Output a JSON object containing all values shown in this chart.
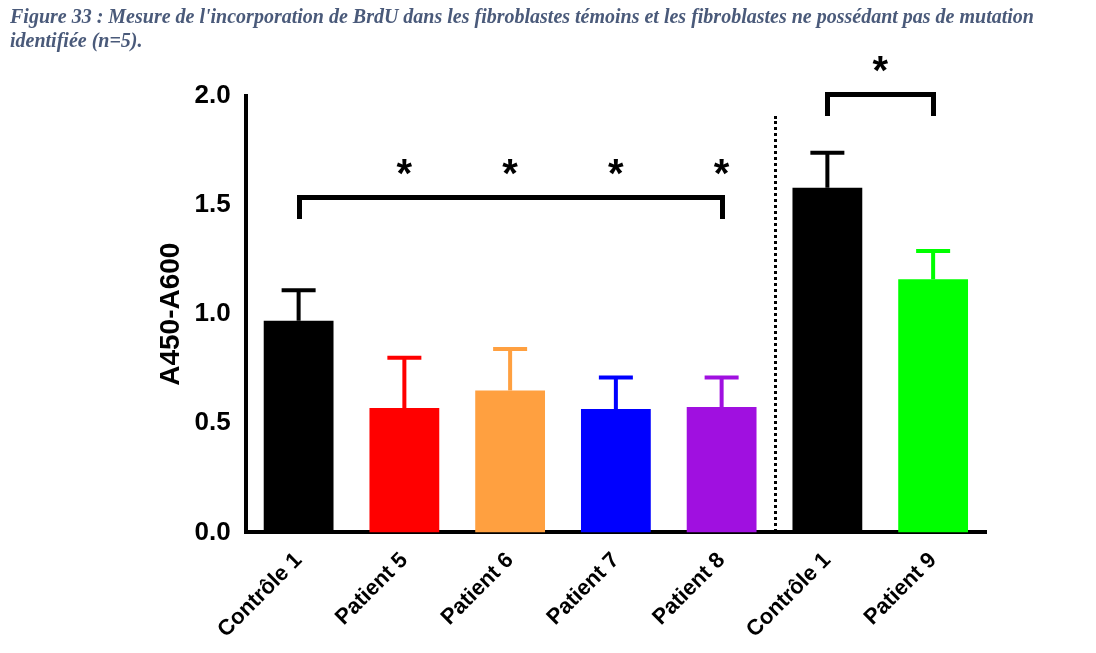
{
  "chart_data": {
    "type": "bar",
    "categories": [
      "Contrôle 1",
      "Patient 5",
      "Patient 6",
      "Patient 7",
      "Patient 8",
      "Contrôle 1",
      "Patient 9"
    ],
    "values": [
      0.97,
      0.57,
      0.65,
      0.565,
      0.575,
      1.58,
      1.16
    ],
    "colors": [
      "#000000",
      "#ff0000",
      "#ffa040",
      "#0000ff",
      "#a010e0",
      "#000000",
      "#00ff00"
    ],
    "errors": [
      [
        0.97,
        1.11
      ],
      [
        0.57,
        0.8
      ],
      [
        0.65,
        0.84
      ],
      [
        0.565,
        0.71
      ],
      [
        0.575,
        0.71
      ],
      [
        1.58,
        1.74
      ],
      [
        1.16,
        1.29
      ]
    ],
    "ylabel": "A450-A600",
    "ylim": [
      0,
      2
    ],
    "yticks": [
      {
        "value": 0,
        "label": "0.0"
      },
      {
        "value": 0.5,
        "label": "0.5"
      },
      {
        "value": 1,
        "label": "1.0"
      },
      {
        "value": 1.5,
        "label": "1.5"
      },
      {
        "value": 2,
        "label": "2.0"
      }
    ],
    "grid": false,
    "legend": false,
    "annotations": [
      "Figure 33 : Mesure de l'incorporation de BrdU dans les fibroblastes témoins et les fibroblastes ne possédant pas de mutation identifiée (n=5).",
      "*",
      "*",
      "*",
      "*",
      "*"
    ]
  }
}
